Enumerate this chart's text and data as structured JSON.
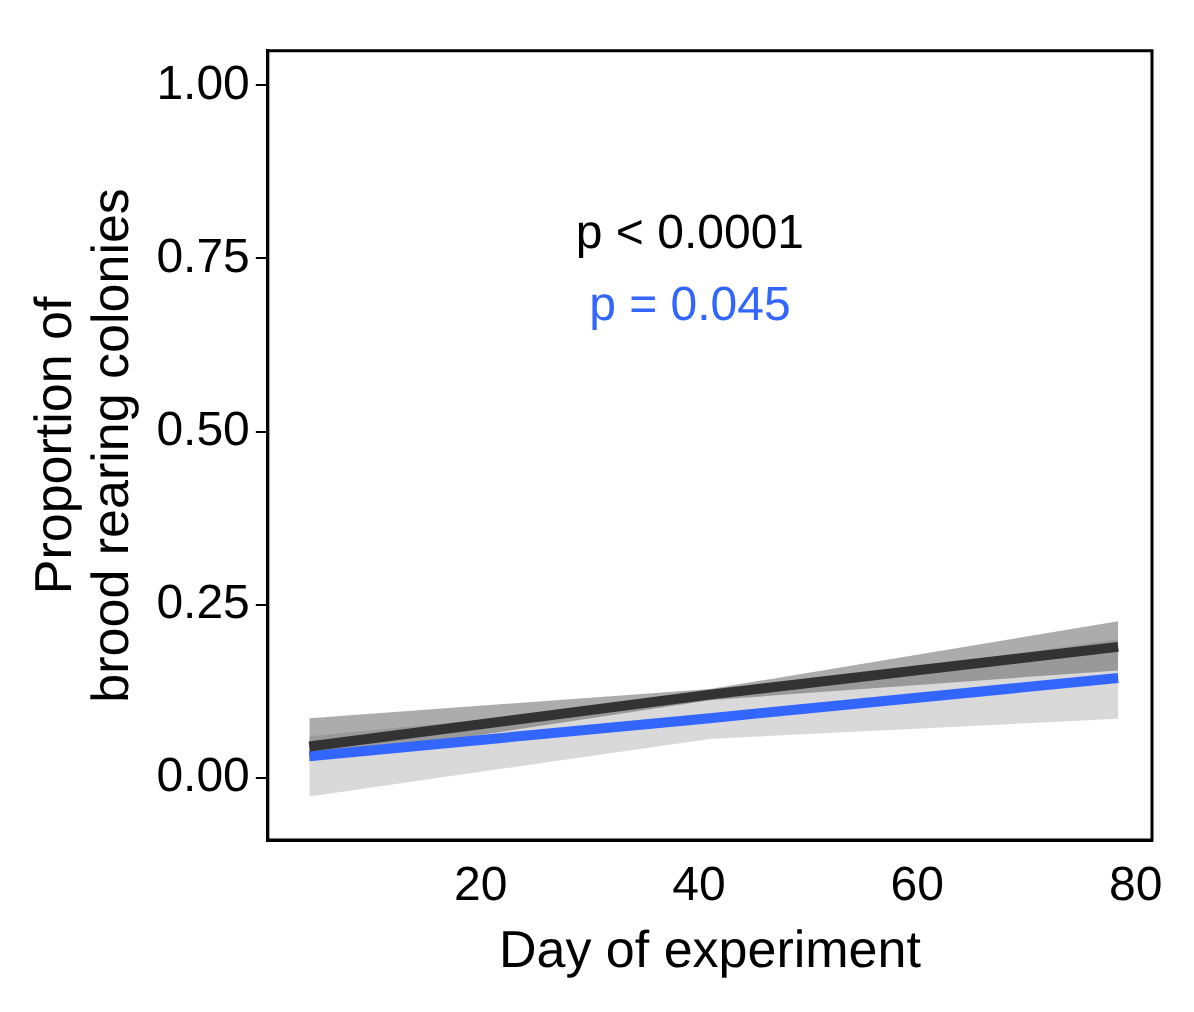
{
  "chart_data": {
    "type": "line",
    "xlabel": "Day of experiment",
    "ylabel": "Proportion of\nbrood rearing colonies",
    "xlim": [
      0.5,
      81.5
    ],
    "xticks": [
      20,
      40,
      60,
      80
    ],
    "ylim": [
      -0.09,
      1.05
    ],
    "yticks": [
      {
        "value": 0,
        "label": "0.00"
      },
      {
        "value": 0.25,
        "label": "0.25"
      },
      {
        "value": 0.5,
        "label": "0.50"
      },
      {
        "value": 0.75,
        "label": "0.75"
      },
      {
        "value": 1,
        "label": "1.00"
      }
    ],
    "grid": false,
    "legend": false,
    "marker": "none",
    "line_style": "solid",
    "annotations": [
      "p < 0.0001",
      "p = 0.045"
    ],
    "series": [
      {
        "color": "#333333",
        "x": [
          4.3,
          41,
          78.4
        ],
        "values": [
          0.045,
          0.12,
          0.189
        ],
        "lower": [
          0.024,
          0.112,
          0.155
        ],
        "upper": [
          0.086,
          0.128,
          0.226
        ]
      },
      {
        "color": "#3366ff",
        "x": [
          4.3,
          41,
          78.4
        ],
        "values": [
          0.031,
          0.086,
          0.144
        ],
        "lower": [
          -0.027,
          0.056,
          0.085
        ],
        "upper": [
          0.06,
          0.115,
          0.2
        ]
      }
    ]
  }
}
